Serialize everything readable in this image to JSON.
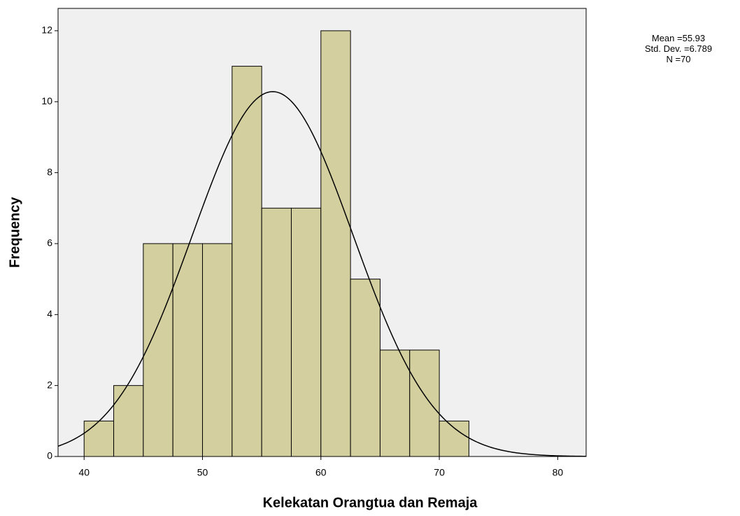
{
  "chart_data": {
    "type": "histogram",
    "x_label": "Kelekatan Orangtua dan Remaja",
    "y_label": "Frequency",
    "bins": [
      40,
      42.5,
      45,
      47.5,
      50,
      52.5,
      55,
      57.5,
      60,
      62.5,
      65,
      67.5,
      70,
      72.5
    ],
    "values": [
      1,
      2,
      6,
      6,
      6,
      11,
      7,
      7,
      12,
      5,
      3,
      3,
      1
    ],
    "color": "#d4cf9e",
    "xlim": [
      37.8,
      82.4
    ],
    "ylim": [
      0,
      12.63
    ],
    "xticks": [
      40,
      50,
      60,
      70,
      80
    ],
    "yticks": [
      0,
      2,
      4,
      6,
      8,
      10,
      12
    ],
    "normal_curve": true,
    "stats": [
      {
        "label": "Mean =",
        "value": 55.93
      },
      {
        "label": "Std. Dev. =",
        "value": 6.789
      },
      {
        "label": "N =",
        "value": 70
      }
    ]
  }
}
